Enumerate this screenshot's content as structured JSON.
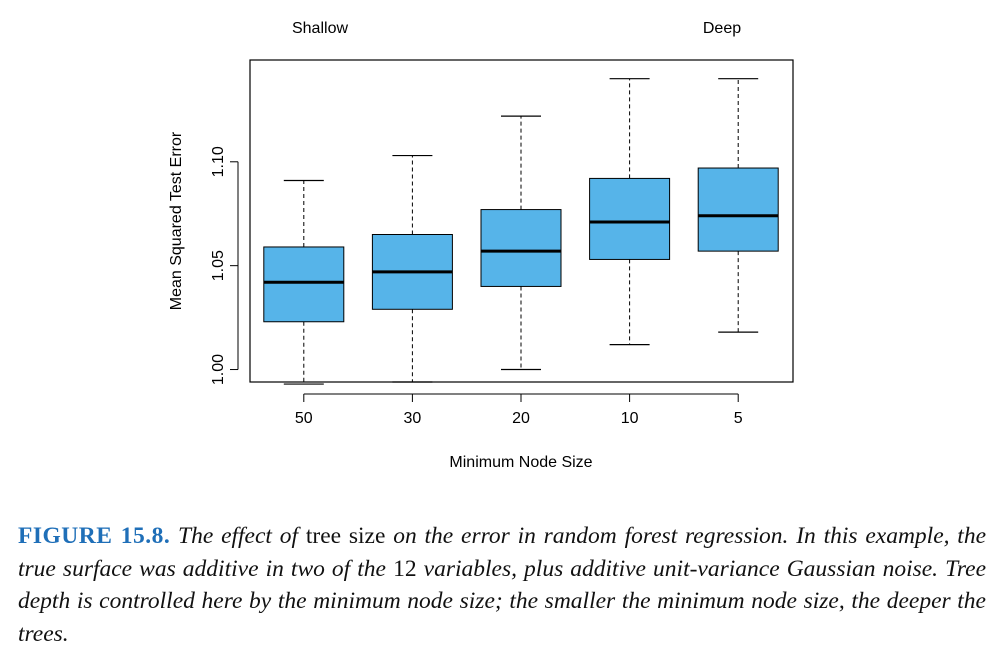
{
  "chart_data": {
    "type": "box",
    "categories": [
      "50",
      "30",
      "20",
      "10",
      "5"
    ],
    "boxes": [
      {
        "category": "50",
        "whisker_low": 0.993,
        "q1": 1.023,
        "median": 1.042,
        "q3": 1.059,
        "whisker_high": 1.091
      },
      {
        "category": "30",
        "whisker_low": 0.994,
        "q1": 1.029,
        "median": 1.047,
        "q3": 1.065,
        "whisker_high": 1.103
      },
      {
        "category": "20",
        "whisker_low": 1.0,
        "q1": 1.04,
        "median": 1.057,
        "q3": 1.077,
        "whisker_high": 1.122
      },
      {
        "category": "10",
        "whisker_low": 1.012,
        "q1": 1.053,
        "median": 1.071,
        "q3": 1.092,
        "whisker_high": 1.14
      },
      {
        "category": "5",
        "whisker_low": 1.018,
        "q1": 1.057,
        "median": 1.074,
        "q3": 1.097,
        "whisker_high": 1.14
      }
    ],
    "xlabel": "Minimum Node Size",
    "ylabel": "Mean Squared Test Error",
    "ylim": [
      0.994,
      1.149
    ],
    "yticks": [
      "1.00",
      "1.05",
      "1.10"
    ],
    "annotations": [
      "Shallow",
      "Deep"
    ],
    "box_color": "#56b4e9",
    "grid": false
  },
  "caption": {
    "label": "FIGURE 15.8.",
    "part1": "The effect of",
    "part2": "tree size",
    "part3": "on the error in random forest regression. In this example, the true surface was additive in two of the",
    "part4": "12",
    "part5": "variables, plus additive unit-variance Gaussian noise. Tree depth is controlled here by the minimum node size; the smaller the minimum node size, the deeper the trees."
  }
}
